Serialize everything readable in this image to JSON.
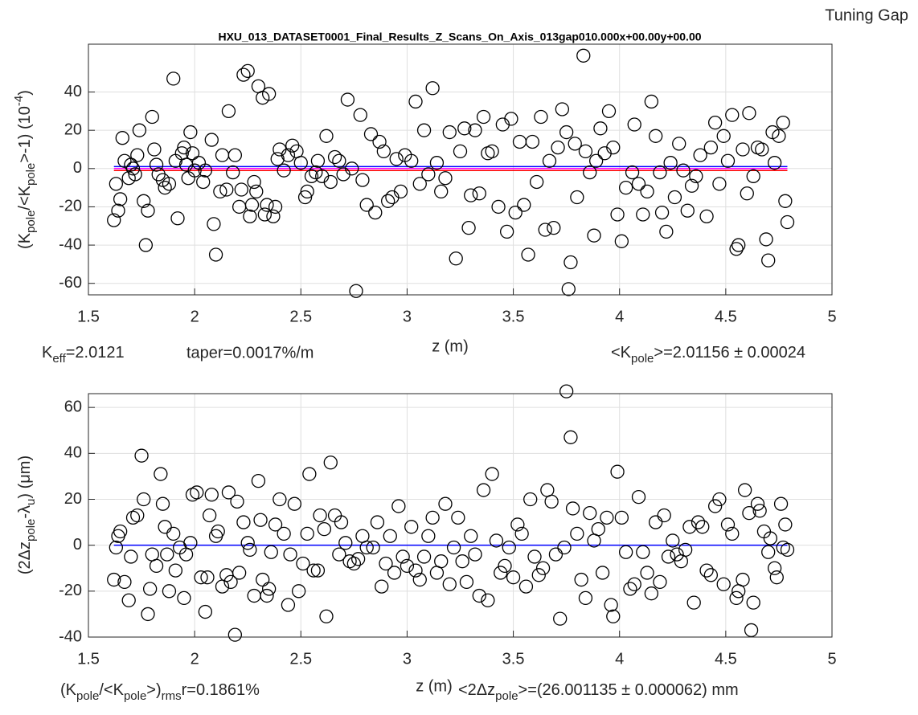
{
  "header": "Tuning Gap",
  "chart_data": [
    {
      "type": "scatter",
      "title": "HXU_013_DATASET0001_Final_Results_Z_Scans_On_Axis_013gap010.000x+00.00y+00.00",
      "xlabel": "z (m)",
      "ylabel": [
        "(K",
        "pole",
        "/<K",
        "pole",
        ">-1) (10",
        "-4",
        ")"
      ],
      "notes": [
        [
          "K",
          "eff",
          "=2.0121"
        ],
        [
          "taper=0.0017%/m"
        ],
        [
          "<K",
          "pole",
          ">=2.01156 ± 0.00024"
        ]
      ],
      "xlim": [
        1.5,
        5
      ],
      "xticks": [
        1.5,
        2,
        2.5,
        3,
        3.5,
        4,
        4.5,
        5
      ],
      "ylim": [
        -66,
        65
      ],
      "yticks": [
        -60,
        -40,
        -20,
        0,
        20,
        40
      ],
      "grid": true,
      "color": "#000000",
      "hlines": [
        {
          "value": 1,
          "color": "#0000ff"
        },
        {
          "value": 0,
          "color": "#ff00ff"
        },
        {
          "value": -1,
          "color": "#ff0000"
        }
      ],
      "x": [
        1.62,
        1.63,
        1.64,
        1.65,
        1.66,
        1.67,
        1.69,
        1.7,
        1.71,
        1.72,
        1.73,
        1.74,
        1.76,
        1.77,
        1.78,
        1.8,
        1.81,
        1.82,
        1.83,
        1.85,
        1.86,
        1.88,
        1.9,
        1.91,
        1.92,
        1.94,
        1.95,
        1.96,
        1.97,
        1.98,
        1.99,
        2.0,
        2.02,
        2.04,
        2.05,
        2.08,
        2.09,
        2.1,
        2.12,
        2.13,
        2.15,
        2.16,
        2.18,
        2.19,
        2.21,
        2.22,
        2.23,
        2.25,
        2.26,
        2.27,
        2.28,
        2.29,
        2.3,
        2.32,
        2.33,
        2.34,
        2.35,
        2.37,
        2.38,
        2.39,
        2.4,
        2.42,
        2.44,
        2.46,
        2.48,
        2.5,
        2.52,
        2.53,
        2.55,
        2.57,
        2.58,
        2.6,
        2.62,
        2.64,
        2.66,
        2.68,
        2.7,
        2.72,
        2.74,
        2.76,
        2.78,
        2.79,
        2.81,
        2.83,
        2.85,
        2.87,
        2.89,
        2.91,
        2.93,
        2.95,
        2.97,
        2.99,
        3.02,
        3.04,
        3.06,
        3.08,
        3.1,
        3.12,
        3.14,
        3.16,
        3.18,
        3.2,
        3.23,
        3.25,
        3.27,
        3.29,
        3.3,
        3.32,
        3.34,
        3.36,
        3.38,
        3.4,
        3.43,
        3.45,
        3.47,
        3.49,
        3.51,
        3.53,
        3.55,
        3.57,
        3.59,
        3.61,
        3.63,
        3.65,
        3.67,
        3.69,
        3.71,
        3.73,
        3.75,
        3.76,
        3.77,
        3.79,
        3.8,
        3.83,
        3.84,
        3.86,
        3.88,
        3.89,
        3.91,
        3.93,
        3.95,
        3.97,
        3.99,
        4.01,
        4.03,
        4.06,
        4.07,
        4.09,
        4.11,
        4.13,
        4.15,
        4.17,
        4.19,
        4.2,
        4.22,
        4.24,
        4.26,
        4.28,
        4.3,
        4.32,
        4.34,
        4.36,
        4.38,
        4.41,
        4.43,
        4.45,
        4.47,
        4.49,
        4.51,
        4.53,
        4.55,
        4.56,
        4.58,
        4.6,
        4.61,
        4.63,
        4.65,
        4.67,
        4.69,
        4.7,
        4.72,
        4.73,
        4.75,
        4.77,
        4.78,
        4.79
      ],
      "values": [
        -27,
        -8,
        -22,
        -16,
        16,
        4,
        -5,
        2,
        0,
        -3,
        7,
        20,
        -17,
        -40,
        -22,
        27,
        10,
        2,
        -3,
        -6,
        -10,
        -8,
        47,
        4,
        -26,
        8,
        11,
        2,
        -5,
        19,
        8,
        -1,
        3,
        -7,
        -1,
        15,
        -29,
        -45,
        -12,
        7,
        -11,
        30,
        -2,
        7,
        -20,
        -11,
        49,
        51,
        -25,
        -19,
        -7,
        -12,
        43,
        37,
        -24,
        -19,
        39,
        -25,
        -20,
        5,
        10,
        -1,
        7,
        12,
        9,
        3,
        -15,
        -12,
        -4,
        -2,
        4,
        -4,
        17,
        -7,
        6,
        4,
        -3,
        36,
        0,
        -64,
        28,
        -6,
        -19,
        18,
        -23,
        14,
        9,
        -17,
        -15,
        5,
        -12,
        7,
        4,
        35,
        -8,
        20,
        -3,
        42,
        3,
        -12,
        -5,
        19,
        -47,
        9,
        21,
        -31,
        -14,
        20,
        -13,
        27,
        8,
        9,
        -20,
        23,
        -33,
        26,
        -23,
        14,
        -19,
        -45,
        14,
        -7,
        27,
        -32,
        4,
        -31,
        11,
        31,
        19,
        -63,
        -49,
        13,
        -15,
        59,
        9,
        -2,
        -35,
        4,
        21,
        8,
        30,
        11,
        -24,
        -38,
        -10,
        -2,
        23,
        -8,
        -24,
        -12,
        35,
        17,
        -2,
        -23,
        -33,
        3,
        -15,
        13,
        -1,
        -22,
        -9,
        -4,
        7,
        -25,
        11,
        24,
        -8,
        17,
        4,
        28,
        -42,
        -40,
        10,
        -13,
        29,
        -4,
        11,
        10,
        -37,
        -48,
        19,
        3,
        17,
        24,
        -17,
        -28
      ]
    },
    {
      "type": "scatter",
      "xlabel": "z (m)",
      "ylabel": [
        "(2Δz",
        "pole",
        "-λ",
        "u",
        ") (μm)"
      ],
      "notes": [
        [
          "(K",
          "pole",
          "/<K",
          "pole",
          ">)",
          "rms",
          "r=0.1861%"
        ],
        [
          "<2Δz",
          "pole",
          ">=(26.001135 ± 0.000062) mm"
        ]
      ],
      "xlim": [
        1.5,
        5
      ],
      "xticks": [
        1.5,
        2,
        2.5,
        3,
        3.5,
        4,
        4.5,
        5
      ],
      "ylim": [
        -40,
        66
      ],
      "yticks": [
        -40,
        -20,
        0,
        20,
        40,
        60
      ],
      "grid": true,
      "color": "#000000",
      "hlines": [
        {
          "value": 0,
          "color": "#0000ff"
        }
      ],
      "x": [
        1.62,
        1.63,
        1.64,
        1.65,
        1.67,
        1.69,
        1.7,
        1.71,
        1.73,
        1.75,
        1.76,
        1.78,
        1.79,
        1.8,
        1.82,
        1.84,
        1.85,
        1.86,
        1.87,
        1.88,
        1.9,
        1.91,
        1.93,
        1.95,
        1.96,
        1.98,
        1.99,
        2.01,
        2.03,
        2.05,
        2.06,
        2.07,
        2.08,
        2.1,
        2.11,
        2.13,
        2.15,
        2.16,
        2.17,
        2.19,
        2.2,
        2.21,
        2.23,
        2.25,
        2.26,
        2.28,
        2.3,
        2.31,
        2.32,
        2.34,
        2.35,
        2.36,
        2.38,
        2.4,
        2.42,
        2.44,
        2.45,
        2.47,
        2.49,
        2.51,
        2.53,
        2.54,
        2.56,
        2.58,
        2.59,
        2.61,
        2.62,
        2.64,
        2.66,
        2.68,
        2.69,
        2.71,
        2.73,
        2.75,
        2.77,
        2.79,
        2.81,
        2.84,
        2.86,
        2.88,
        2.9,
        2.92,
        2.94,
        2.96,
        2.98,
        3.0,
        3.02,
        3.04,
        3.06,
        3.08,
        3.1,
        3.12,
        3.14,
        3.16,
        3.18,
        3.2,
        3.22,
        3.24,
        3.26,
        3.28,
        3.3,
        3.32,
        3.34,
        3.36,
        3.38,
        3.4,
        3.42,
        3.44,
        3.46,
        3.48,
        3.5,
        3.52,
        3.54,
        3.56,
        3.58,
        3.6,
        3.62,
        3.64,
        3.66,
        3.68,
        3.7,
        3.72,
        3.74,
        3.75,
        3.77,
        3.78,
        3.8,
        3.82,
        3.84,
        3.86,
        3.88,
        3.9,
        3.92,
        3.94,
        3.96,
        3.97,
        3.99,
        4.01,
        4.03,
        4.05,
        4.07,
        4.09,
        4.11,
        4.13,
        4.15,
        4.17,
        4.19,
        4.21,
        4.23,
        4.25,
        4.27,
        4.29,
        4.31,
        4.33,
        4.35,
        4.37,
        4.39,
        4.41,
        4.43,
        4.45,
        4.47,
        4.49,
        4.51,
        4.53,
        4.55,
        4.56,
        4.58,
        4.59,
        4.61,
        4.62,
        4.63,
        4.65,
        4.66,
        4.68,
        4.7,
        4.71,
        4.73,
        4.74,
        4.76,
        4.77,
        4.78,
        4.79
      ],
      "values": [
        -15,
        -1,
        4,
        6,
        -16,
        -24,
        -5,
        12,
        13,
        39,
        20,
        -30,
        -19,
        -4,
        -9,
        31,
        18,
        8,
        -4,
        -20,
        5,
        -11,
        -1,
        -23,
        -4,
        1,
        22,
        23,
        -14,
        -29,
        -14,
        13,
        22,
        4,
        6,
        -18,
        -13,
        23,
        -16,
        -39,
        19,
        -12,
        10,
        1,
        -2,
        -22,
        28,
        11,
        -15,
        -22,
        -19,
        -3,
        9,
        20,
        5,
        -26,
        -4,
        18,
        -20,
        -8,
        5,
        31,
        -11,
        -11,
        13,
        7,
        -31,
        36,
        13,
        -4,
        10,
        1,
        -7,
        -8,
        -6,
        4,
        -1,
        -1,
        10,
        -18,
        -8,
        4,
        -12,
        17,
        -5,
        -9,
        8,
        -11,
        -15,
        -5,
        4,
        12,
        -12,
        -7,
        18,
        -17,
        -1,
        12,
        -7,
        -16,
        4,
        -4,
        -22,
        24,
        -24,
        31,
        2,
        -12,
        -9,
        -1,
        -14,
        9,
        5,
        -18,
        20,
        -5,
        -13,
        -10,
        24,
        19,
        -4,
        -32,
        -1,
        67,
        47,
        16,
        5,
        -15,
        -23,
        14,
        2,
        7,
        -12,
        12,
        -26,
        -31,
        32,
        12,
        -3,
        -19,
        -17,
        21,
        -3,
        -12,
        -21,
        10,
        -16,
        13,
        -5,
        2,
        -4,
        -7,
        -2,
        8,
        -25,
        10,
        8,
        -11,
        -13,
        17,
        20,
        -17,
        9,
        5,
        -23,
        -20,
        -15,
        24,
        14,
        -37,
        -25,
        18,
        15,
        6,
        -3,
        3,
        -10,
        -14,
        18,
        -1,
        9,
        -2
      ]
    }
  ]
}
